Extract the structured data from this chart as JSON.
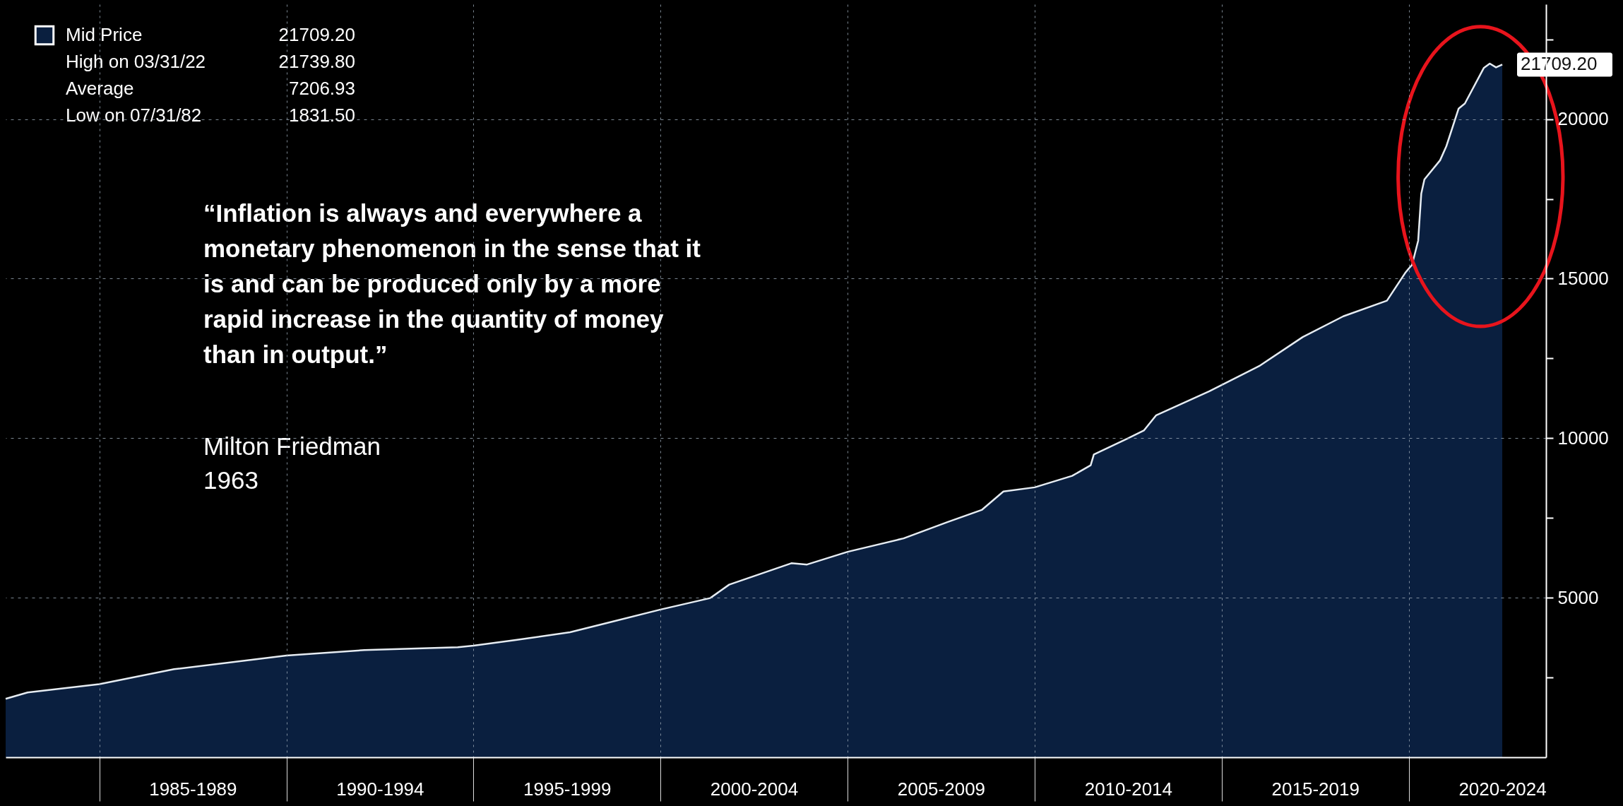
{
  "chart_data": {
    "type": "area",
    "x": [
      "1982-07",
      "1983-02",
      "1985-01",
      "1987-01",
      "1990-01",
      "1992-02",
      "1994-08",
      "1995-01",
      "1996-03",
      "1997-08",
      "1998-08",
      "2000-01",
      "2001-05",
      "2001-11",
      "2003-07",
      "2003-12",
      "2005-01",
      "2006-07",
      "2007-09",
      "2008-08",
      "2009-03",
      "2010-01",
      "2011-01",
      "2011-07",
      "2011-08",
      "2012-07",
      "2012-12",
      "2013-04",
      "2014-09",
      "2016-01",
      "2017-03",
      "2018-04",
      "2019-06",
      "2019-12",
      "2020-01",
      "2020-02",
      "2020-04",
      "2020-05",
      "2020-06",
      "2020-11",
      "2021-01",
      "2021-05",
      "2021-07",
      "2022-01",
      "2022-03",
      "2022-05",
      "2022-07"
    ],
    "series": [
      {
        "name": "Mid Price",
        "color": "#0a1f3f",
        "values": [
          1831.5,
          2030,
          2290,
          2760,
          3190,
          3360,
          3450,
          3500,
          3680,
          3920,
          4210,
          4630,
          4990,
          5410,
          6080,
          6040,
          6440,
          6860,
          7370,
          7750,
          8330,
          8460,
          8820,
          9150,
          9490,
          10000,
          10240,
          10720,
          11470,
          12260,
          13170,
          13820,
          14310,
          15200,
          15320,
          15430,
          16190,
          17660,
          18110,
          18710,
          19150,
          20330,
          20490,
          21600,
          21739.8,
          21620,
          21709.2
        ]
      }
    ],
    "xlim": [
      "1982-07",
      "2023-09"
    ],
    "xticks": [
      {
        "value": "1985-01",
        "label": null
      },
      {
        "value": "1987-07",
        "label": "1985-1989"
      },
      {
        "value": "1990-01",
        "label": null
      },
      {
        "value": "1992-07",
        "label": "1990-1994"
      },
      {
        "value": "1995-01",
        "label": null
      },
      {
        "value": "1997-07",
        "label": "1995-1999"
      },
      {
        "value": "2000-01",
        "label": null
      },
      {
        "value": "2002-07",
        "label": "2000-2004"
      },
      {
        "value": "2005-01",
        "label": null
      },
      {
        "value": "2007-07",
        "label": "2005-2009"
      },
      {
        "value": "2010-01",
        "label": null
      },
      {
        "value": "2012-07",
        "label": "2010-2014"
      },
      {
        "value": "2015-01",
        "label": null
      },
      {
        "value": "2017-07",
        "label": "2015-2019"
      },
      {
        "value": "2020-01",
        "label": null
      },
      {
        "value": "2022-07",
        "label": "2020-2024"
      }
    ],
    "ylim": [
      0,
      23600
    ],
    "yticks": [
      {
        "value": 0,
        "label": null
      },
      {
        "value": 2500,
        "label": null
      },
      5000,
      {
        "value": 7500,
        "label": null
      },
      10000,
      {
        "value": 12500,
        "label": null
      },
      15000,
      {
        "value": 17500,
        "label": null
      },
      20000,
      {
        "value": 22500,
        "label": null
      }
    ],
    "grid": true,
    "legend": "top left",
    "annotations": [
      "21709.20",
      "High on 03/31/22",
      "21739.80",
      "Average",
      "7206.93",
      "Low on 07/31/82",
      "1831.50",
      "“Inflation is always and everywhere a\nmonetary phenomenon in the sense that it\nis and can be produced only by a more\nrapid increase in the quantity of money\nthan in output.”",
      "Milton Friedman",
      "1963",
      "21709.20"
    ]
  }
}
